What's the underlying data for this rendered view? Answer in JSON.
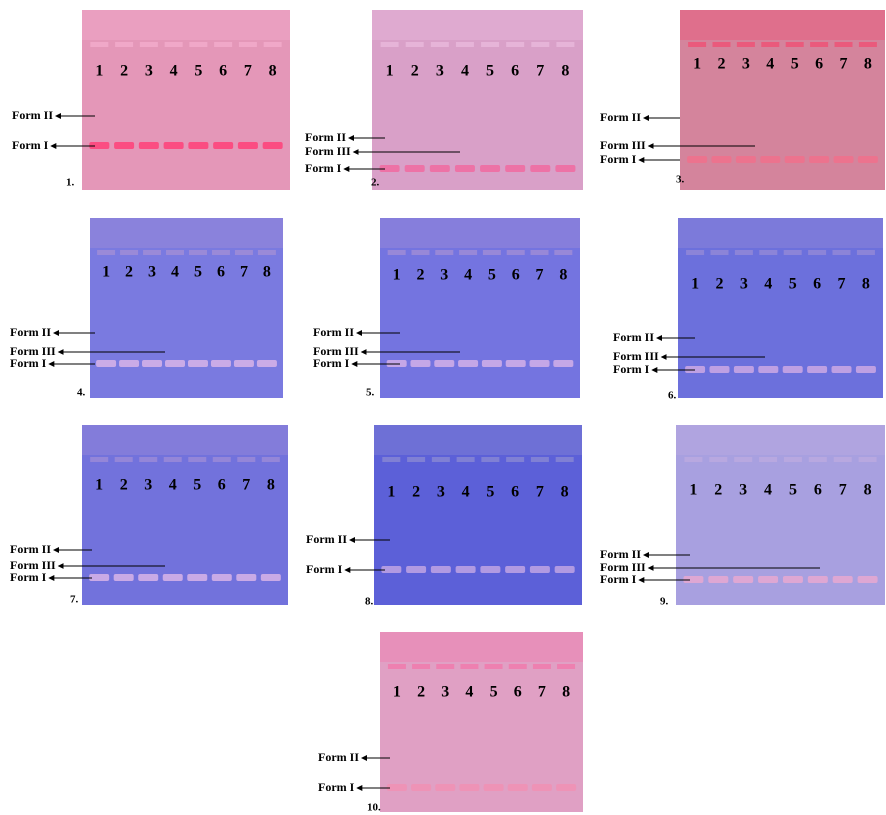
{
  "panels": [
    {
      "label": "1.",
      "lanes": [
        "1",
        "2",
        "3",
        "4",
        "5",
        "6",
        "7",
        "8"
      ],
      "forms": [
        "Form II",
        "Form I"
      ]
    },
    {
      "label": "2.",
      "lanes": [
        "1",
        "2",
        "3",
        "4",
        "5",
        "6",
        "7",
        "8"
      ],
      "forms": [
        "Form II",
        "Form III",
        "Form I"
      ]
    },
    {
      "label": "3.",
      "lanes": [
        "1",
        "2",
        "3",
        "4",
        "5",
        "6",
        "7",
        "8"
      ],
      "forms": [
        "Form II",
        "Form III",
        "Form I"
      ]
    },
    {
      "label": "4.",
      "lanes": [
        "1",
        "2",
        "3",
        "4",
        "5",
        "6",
        "7",
        "8"
      ],
      "forms": [
        "Form II",
        "Form III",
        "Form I"
      ]
    },
    {
      "label": "5.",
      "lanes": [
        "1",
        "2",
        "3",
        "4",
        "5",
        "6",
        "7",
        "8"
      ],
      "forms": [
        "Form II",
        "Form III",
        "Form I"
      ]
    },
    {
      "label": "6.",
      "lanes": [
        "1",
        "2",
        "3",
        "4",
        "5",
        "6",
        "7",
        "8"
      ],
      "forms": [
        "Form II",
        "Form III",
        "Form I"
      ]
    },
    {
      "label": "7.",
      "lanes": [
        "1",
        "2",
        "3",
        "4",
        "5",
        "6",
        "7",
        "8"
      ],
      "forms": [
        "Form II",
        "Form III",
        "Form I"
      ]
    },
    {
      "label": "8.",
      "lanes": [
        "1",
        "2",
        "3",
        "4",
        "5",
        "6",
        "7",
        "8"
      ],
      "forms": [
        "Form II",
        "Form I"
      ]
    },
    {
      "label": "9.",
      "lanes": [
        "1",
        "2",
        "3",
        "4",
        "5",
        "6",
        "7",
        "8"
      ],
      "forms": [
        "Form II",
        "Form III",
        "Form I"
      ]
    },
    {
      "label": "10.",
      "lanes": [
        "1",
        "2",
        "3",
        "4",
        "5",
        "6",
        "7",
        "8"
      ],
      "forms": [
        "Form II",
        "Form I"
      ]
    }
  ]
}
